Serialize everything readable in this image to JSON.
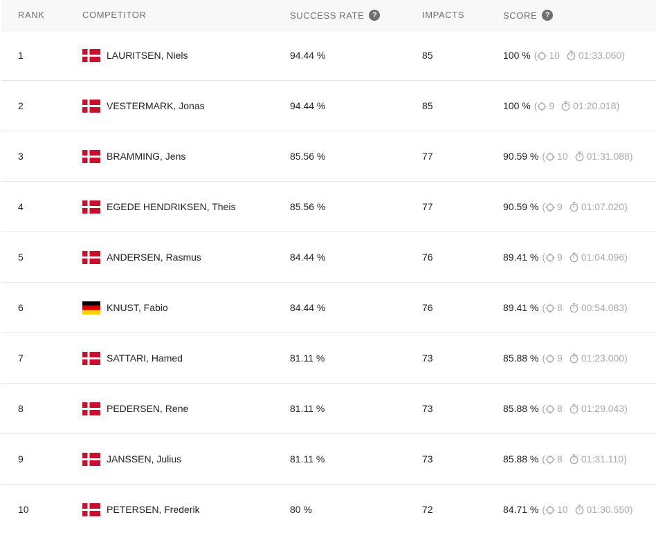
{
  "header": {
    "rank": "RANK",
    "competitor": "COMPETITOR",
    "success_rate": "SUCCESS RATE",
    "impacts": "IMPACTS",
    "score": "SCORE",
    "help_glyph": "?"
  },
  "icons": {
    "hits": "crosshair-icon",
    "time": "stopwatch-icon",
    "help": "question-mark-icon"
  },
  "colors": {
    "denmark_red": "#c8102e",
    "germany_black": "#000000",
    "germany_red": "#dd0000",
    "germany_gold": "#ffce00",
    "muted_text": "#a9a9a9"
  },
  "rows": [
    {
      "rank": "1",
      "flag": "DK",
      "name": "LAURITSEN, Niels",
      "success": "94.44 %",
      "impacts": "85",
      "score": "100 %",
      "hits": "10",
      "time": "01:33.060)"
    },
    {
      "rank": "2",
      "flag": "DK",
      "name": "VESTERMARK, Jonas",
      "success": "94.44 %",
      "impacts": "85",
      "score": "100 %",
      "hits": "9",
      "time": "01:20.018)"
    },
    {
      "rank": "3",
      "flag": "DK",
      "name": "BRAMMING, Jens",
      "success": "85.56 %",
      "impacts": "77",
      "score": "90.59 %",
      "hits": "10",
      "time": "01:31.088)"
    },
    {
      "rank": "4",
      "flag": "DK",
      "name": "EGEDE HENDRIKSEN, Theis",
      "success": "85.56 %",
      "impacts": "77",
      "score": "90.59 %",
      "hits": "9",
      "time": "01:07.020)"
    },
    {
      "rank": "5",
      "flag": "DK",
      "name": "ANDERSEN, Rasmus",
      "success": "84.44 %",
      "impacts": "76",
      "score": "89.41 %",
      "hits": "9",
      "time": "01:04.096)"
    },
    {
      "rank": "6",
      "flag": "DE",
      "name": "KNUST, Fabio",
      "success": "84.44 %",
      "impacts": "76",
      "score": "89.41 %",
      "hits": "8",
      "time": "00:54.083)"
    },
    {
      "rank": "7",
      "flag": "DK",
      "name": "SATTARI, Hamed",
      "success": "81.11 %",
      "impacts": "73",
      "score": "85.88 %",
      "hits": "9",
      "time": "01:23.000)"
    },
    {
      "rank": "8",
      "flag": "DK",
      "name": "PEDERSEN, Rene",
      "success": "81.11 %",
      "impacts": "73",
      "score": "85.88 %",
      "hits": "8",
      "time": "01:29.043)"
    },
    {
      "rank": "9",
      "flag": "DK",
      "name": "JANSSEN, Julius",
      "success": "81.11 %",
      "impacts": "73",
      "score": "85.88 %",
      "hits": "8",
      "time": "01:31.110)"
    },
    {
      "rank": "10",
      "flag": "DK",
      "name": "PETERSEN, Frederik",
      "success": "80 %",
      "impacts": "72",
      "score": "84.71 %",
      "hits": "10",
      "time": "01:30.550)"
    }
  ]
}
